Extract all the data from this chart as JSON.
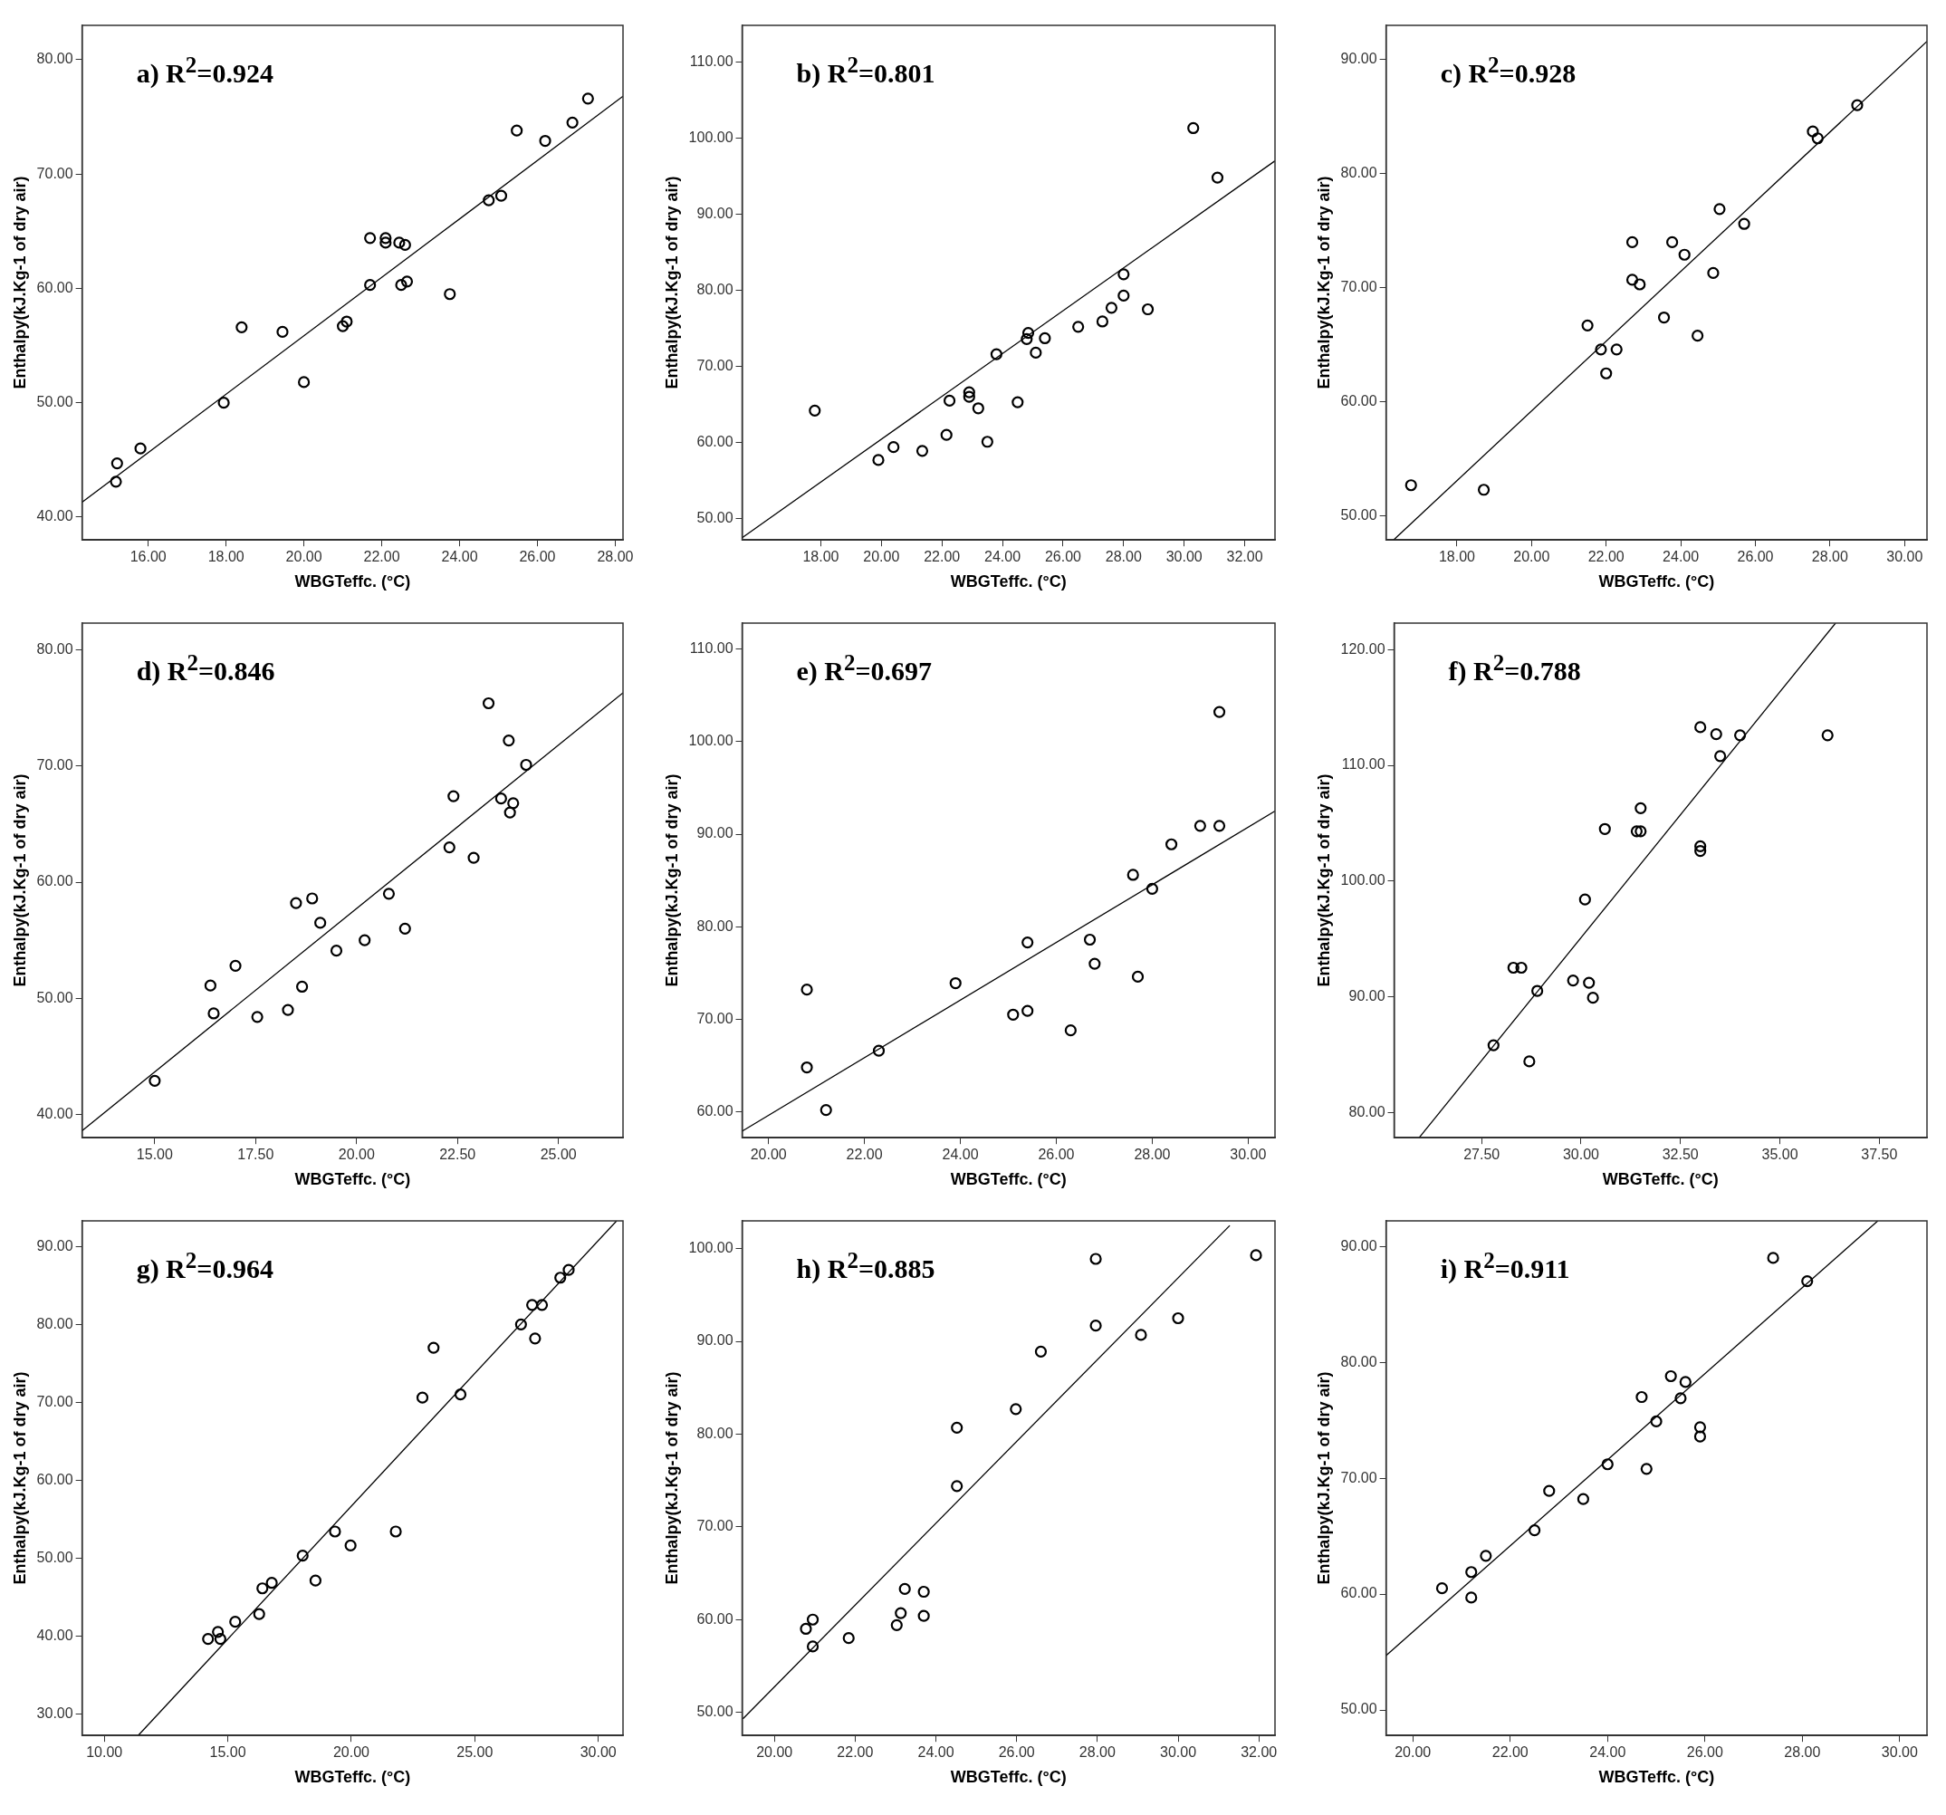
{
  "chart_data": [
    {
      "type": "scatter",
      "xlabel": "WBGTeffc. (°C)",
      "ylabel": "Enthalpy(kJ.Kg-1 of dry air)",
      "annotations": [
        "a)  R$^{2}$=0.924"
      ],
      "marker": "circle",
      "grid": false,
      "legend": false,
      "xlim": [
        14.3,
        28.2
      ],
      "xticks": [
        {
          "value": 16,
          "label": "16.00"
        },
        {
          "value": 18,
          "label": "18.00"
        },
        {
          "value": 20,
          "label": "20.00"
        },
        {
          "value": 22,
          "label": "22.00"
        },
        {
          "value": 24,
          "label": "24.00"
        },
        {
          "value": 26,
          "label": "26.00"
        },
        {
          "value": 28,
          "label": "28.00"
        }
      ],
      "ylim": [
        38,
        83
      ],
      "yticks": [
        {
          "value": 40,
          "label": "40.00"
        },
        {
          "value": 50,
          "label": "50.00"
        },
        {
          "value": 60,
          "label": "60.00"
        },
        {
          "value": 70,
          "label": "70.00"
        },
        {
          "value": 80,
          "label": "80.00"
        }
      ],
      "series": [
        {
          "type": "scatter",
          "color": "#000000",
          "x": [
            15.2,
            15.17,
            15.8,
            17.94,
            18.4,
            19.45,
            20.0,
            21.7,
            21.7,
            21.0,
            21.1,
            22.1,
            22.1,
            22.45,
            22.6,
            22.5,
            22.65,
            23.75,
            24.75,
            25.07,
            25.47,
            26.2,
            26.9,
            27.3
          ],
          "values": [
            44.7,
            43.1,
            46.0,
            50.0,
            56.6,
            56.2,
            51.8,
            60.3,
            64.4,
            56.7,
            57.1,
            64.4,
            64.0,
            64.0,
            63.8,
            60.3,
            60.6,
            59.5,
            67.7,
            68.1,
            73.8,
            72.9,
            74.5,
            76.6
          ]
        },
        {
          "type": "line",
          "marker": "none",
          "color": "#000000",
          "x": [
            14.3,
            28.2
          ],
          "values": [
            41.3,
            76.8
          ]
        }
      ]
    },
    {
      "type": "scatter",
      "xlabel": "WBGTeffc. (°C)",
      "ylabel": "Enthalpy(kJ.Kg-1 of dry air)",
      "annotations": [
        "b) R$^{2}$=0.801"
      ],
      "marker": "circle",
      "grid": false,
      "legend": false,
      "xlim": [
        15.4,
        33.0
      ],
      "xticks": [
        {
          "value": 18,
          "label": "18.00"
        },
        {
          "value": 20,
          "label": "20.00"
        },
        {
          "value": 22,
          "label": "22.00"
        },
        {
          "value": 24,
          "label": "24.00"
        },
        {
          "value": 26,
          "label": "26.00"
        },
        {
          "value": 28,
          "label": "28.00"
        },
        {
          "value": 30,
          "label": "30.00"
        },
        {
          "value": 32,
          "label": "32.00"
        }
      ],
      "ylim": [
        47.2,
        114.8
      ],
      "yticks": [
        {
          "value": 50,
          "label": "50.00"
        },
        {
          "value": 60,
          "label": "60.00"
        },
        {
          "value": 70,
          "label": "70.00"
        },
        {
          "value": 80,
          "label": "80.00"
        },
        {
          "value": 90,
          "label": "90.00"
        },
        {
          "value": 100,
          "label": "100.00"
        },
        {
          "value": 110,
          "label": "110.00"
        }
      ],
      "series": [
        {
          "type": "scatter",
          "color": "#000000",
          "x": [
            17.8,
            19.9,
            20.4,
            21.35,
            22.15,
            22.25,
            22.9,
            22.9,
            23.2,
            23.5,
            23.8,
            24.5,
            24.8,
            24.85,
            25.1,
            25.4,
            26.5,
            27.3,
            27.6,
            28.0,
            28.0,
            28.8,
            30.3,
            31.1
          ],
          "values": [
            64.2,
            57.7,
            59.4,
            58.9,
            61.0,
            65.5,
            66.6,
            66.0,
            64.5,
            60.1,
            71.6,
            65.3,
            73.6,
            74.4,
            71.8,
            73.7,
            75.2,
            75.9,
            77.7,
            79.3,
            82.1,
            77.5,
            101.3,
            94.8
          ]
        },
        {
          "type": "line",
          "marker": "none",
          "color": "#000000",
          "x": [
            15.4,
            33.0
          ],
          "values": [
            47.5,
            97.0
          ]
        }
      ]
    },
    {
      "type": "scatter",
      "xlabel": "WBGTeffc. (°C)",
      "ylabel": "Enthalpy(kJ.Kg-1 of dry air)",
      "annotations": [
        "c) R$^{2}$=0.928"
      ],
      "marker": "circle",
      "grid": false,
      "legend": false,
      "xlim": [
        16.1,
        30.6
      ],
      "xticks": [
        {
          "value": 18,
          "label": "18.00"
        },
        {
          "value": 20,
          "label": "20.00"
        },
        {
          "value": 22,
          "label": "22.00"
        },
        {
          "value": 24,
          "label": "24.00"
        },
        {
          "value": 26,
          "label": "26.00"
        },
        {
          "value": 28,
          "label": "28.00"
        },
        {
          "value": 30,
          "label": "30.00"
        }
      ],
      "ylim": [
        47.9,
        93.0
      ],
      "yticks": [
        {
          "value": 50,
          "label": "50.00"
        },
        {
          "value": 60,
          "label": "60.00"
        },
        {
          "value": 70,
          "label": "70.00"
        },
        {
          "value": 80,
          "label": "80.00"
        },
        {
          "value": 90,
          "label": "90.00"
        }
      ],
      "series": [
        {
          "type": "scatter",
          "color": "#000000",
          "x": [
            16.77,
            18.72,
            21.5,
            21.86,
            22.28,
            22.0,
            22.7,
            22.7,
            22.9,
            23.55,
            23.77,
            24.1,
            24.45,
            24.87,
            25.04,
            25.7,
            27.54,
            27.67,
            28.73
          ],
          "values": [
            52.7,
            52.3,
            66.7,
            64.6,
            64.6,
            62.5,
            74.0,
            70.7,
            70.3,
            67.4,
            74.0,
            72.9,
            65.8,
            71.3,
            76.9,
            75.6,
            83.7,
            83.1,
            86.0
          ]
        },
        {
          "type": "line",
          "marker": "none",
          "color": "#000000",
          "x": [
            16.3,
            30.6
          ],
          "values": [
            47.9,
            91.6
          ]
        }
      ]
    },
    {
      "type": "scatter",
      "xlabel": "WBGTeffc. (°C)",
      "ylabel": "Enthalpy(kJ.Kg-1 of dry air)",
      "annotations": [
        "d) R$^{2}$=0.846"
      ],
      "marker": "circle",
      "grid": false,
      "legend": false,
      "xlim": [
        13.2,
        26.6
      ],
      "xticks": [
        {
          "value": 15,
          "label": "15.00"
        },
        {
          "value": 17.5,
          "label": "17.50"
        },
        {
          "value": 20,
          "label": "20.00"
        },
        {
          "value": 22.5,
          "label": "22.50"
        },
        {
          "value": 25,
          "label": "25.00"
        }
      ],
      "ylim": [
        38,
        82.3
      ],
      "yticks": [
        {
          "value": 40,
          "label": "40.00"
        },
        {
          "value": 50,
          "label": "50.00"
        },
        {
          "value": 60,
          "label": "60.00"
        },
        {
          "value": 70,
          "label": "70.00"
        },
        {
          "value": 80,
          "label": "80.00"
        }
      ],
      "series": [
        {
          "type": "scatter",
          "color": "#000000",
          "x": [
            15.0,
            16.38,
            16.46,
            17.0,
            17.54,
            18.3,
            18.5,
            18.65,
            18.9,
            19.1,
            19.5,
            20.2,
            20.8,
            21.2,
            22.3,
            22.4,
            22.9,
            23.27,
            23.58,
            23.77,
            23.8,
            23.88,
            24.2
          ],
          "values": [
            42.9,
            51.1,
            48.7,
            52.8,
            48.4,
            49.0,
            58.2,
            51.0,
            58.6,
            56.5,
            54.1,
            55.0,
            59.0,
            56.0,
            63.0,
            67.4,
            62.1,
            75.4,
            67.2,
            72.2,
            66.0,
            66.8,
            70.1
          ]
        },
        {
          "type": "line",
          "marker": "none",
          "color": "#000000",
          "x": [
            13.2,
            26.6
          ],
          "values": [
            38.6,
            76.3
          ]
        }
      ]
    },
    {
      "type": "scatter",
      "xlabel": "WBGTeffc. (°C)",
      "ylabel": "Enthalpy(kJ.Kg-1 of dry air)",
      "annotations": [
        "e) R$^{2}$=0.697"
      ],
      "marker": "circle",
      "grid": false,
      "legend": false,
      "xlim": [
        19.45,
        30.56
      ],
      "xticks": [
        {
          "value": 20,
          "label": "20.00"
        },
        {
          "value": 22,
          "label": "22.00"
        },
        {
          "value": 24,
          "label": "24.00"
        },
        {
          "value": 26,
          "label": "26.00"
        },
        {
          "value": 28,
          "label": "28.00"
        },
        {
          "value": 30,
          "label": "30.00"
        }
      ],
      "ylim": [
        57.2,
        112.8
      ],
      "yticks": [
        {
          "value": 60,
          "label": "60.00"
        },
        {
          "value": 70,
          "label": "70.00"
        },
        {
          "value": 80,
          "label": "80.00"
        },
        {
          "value": 90,
          "label": "90.00"
        },
        {
          "value": 100,
          "label": "100.00"
        },
        {
          "value": 110,
          "label": "110.00"
        }
      ],
      "series": [
        {
          "type": "scatter",
          "color": "#000000",
          "x": [
            20.8,
            20.8,
            21.2,
            22.3,
            23.9,
            25.1,
            25.4,
            25.4,
            26.3,
            26.7,
            26.8,
            27.6,
            27.7,
            28.0,
            28.4,
            29.0,
            29.4,
            29.4
          ],
          "values": [
            73.2,
            64.8,
            60.2,
            66.6,
            73.9,
            70.5,
            70.9,
            78.3,
            68.8,
            78.6,
            76.0,
            85.6,
            74.6,
            84.1,
            88.9,
            90.9,
            90.9,
            103.2
          ]
        },
        {
          "type": "line",
          "marker": "none",
          "color": "#000000",
          "x": [
            19.45,
            30.56
          ],
          "values": [
            57.9,
            92.5
          ]
        }
      ]
    },
    {
      "type": "scatter",
      "xlabel": "WBGTeffc. (°C)",
      "ylabel": "Enthalpy(kJ.Kg-1 of dry air)",
      "annotations": [
        "f) R$^{2}$=0.788"
      ],
      "marker": "circle",
      "grid": false,
      "legend": false,
      "xlim": [
        25.3,
        38.7
      ],
      "xticks": [
        {
          "value": 27.5,
          "label": "27.50"
        },
        {
          "value": 30,
          "label": "30.00"
        },
        {
          "value": 32.5,
          "label": "32.50"
        },
        {
          "value": 35,
          "label": "35.00"
        },
        {
          "value": 37.5,
          "label": "37.50"
        }
      ],
      "ylim": [
        77.8,
        122.3
      ],
      "yticks": [
        {
          "value": 80,
          "label": "80.00"
        },
        {
          "value": 90,
          "label": "90.00"
        },
        {
          "value": 100,
          "label": "100.00"
        },
        {
          "value": 110,
          "label": "110.00"
        },
        {
          "value": 120,
          "label": "120.00"
        }
      ],
      "series": [
        {
          "type": "scatter",
          "color": "#000000",
          "x": [
            27.8,
            28.7,
            28.3,
            28.5,
            28.9,
            29.8,
            30.2,
            30.3,
            30.1,
            30.6,
            31.4,
            31.5,
            31.5,
            33.0,
            33.0,
            33.0,
            33.4,
            34.0,
            33.5,
            36.2
          ],
          "values": [
            85.8,
            84.4,
            92.5,
            92.5,
            90.5,
            91.4,
            91.2,
            89.9,
            98.4,
            104.5,
            104.3,
            104.3,
            106.3,
            103.0,
            102.6,
            113.3,
            112.7,
            112.6,
            110.8,
            112.6
          ]
        },
        {
          "type": "line",
          "marker": "none",
          "color": "#000000",
          "x": [
            25.93,
            36.4
          ],
          "values": [
            77.8,
            122.3
          ]
        }
      ]
    },
    {
      "type": "scatter",
      "xlabel": "WBGTeffc. (°C)",
      "ylabel": "Enthalpy(kJ.Kg-1 of dry air)",
      "annotations": [
        "g) R$^{2}$=0.964"
      ],
      "marker": "circle",
      "grid": false,
      "legend": false,
      "xlim": [
        9.1,
        31.0
      ],
      "xticks": [
        {
          "value": 10,
          "label": "10.00"
        },
        {
          "value": 15,
          "label": "15.00"
        },
        {
          "value": 20,
          "label": "20.00"
        },
        {
          "value": 25,
          "label": "25.00"
        },
        {
          "value": 30,
          "label": "30.00"
        }
      ],
      "ylim": [
        27.2,
        93.3
      ],
      "yticks": [
        {
          "value": 30,
          "label": "30.00"
        },
        {
          "value": 40,
          "label": "40.00"
        },
        {
          "value": 50,
          "label": "50.00"
        },
        {
          "value": 60,
          "label": "60.00"
        },
        {
          "value": 70,
          "label": "70.00"
        },
        {
          "value": 80,
          "label": "80.00"
        },
        {
          "value": 90,
          "label": "90.00"
        }
      ],
      "series": [
        {
          "type": "scatter",
          "color": "#000000",
          "x": [
            14.2,
            14.6,
            14.7,
            15.3,
            16.27,
            16.4,
            16.78,
            18.03,
            18.55,
            19.34,
            19.97,
            21.8,
            22.88,
            23.33,
            24.42,
            26.87,
            27.32,
            27.44,
            27.72,
            28.46,
            28.8
          ],
          "values": [
            39.6,
            40.5,
            39.6,
            41.8,
            42.8,
            46.1,
            46.8,
            50.3,
            47.1,
            53.4,
            51.6,
            53.4,
            70.6,
            77.0,
            71.0,
            80.0,
            82.5,
            78.2,
            82.5,
            86.0,
            87.0
          ]
        },
        {
          "type": "line",
          "marker": "none",
          "color": "#000000",
          "x": [
            11.37,
            30.74
          ],
          "values": [
            27.2,
            93.3
          ]
        }
      ]
    },
    {
      "type": "scatter",
      "xlabel": "WBGTeffc. (°C)",
      "ylabel": "Enthalpy(kJ.Kg-1 of dry air)",
      "annotations": [
        "h) R$^{2}$=0.885"
      ],
      "marker": "circle",
      "grid": false,
      "legend": false,
      "xlim": [
        19.2,
        32.4
      ],
      "xticks": [
        {
          "value": 20,
          "label": "20.00"
        },
        {
          "value": 22,
          "label": "22.00"
        },
        {
          "value": 24,
          "label": "24.00"
        },
        {
          "value": 26,
          "label": "26.00"
        },
        {
          "value": 28,
          "label": "28.00"
        },
        {
          "value": 30,
          "label": "30.00"
        },
        {
          "value": 32,
          "label": "32.00"
        }
      ],
      "ylim": [
        47.5,
        103.0
      ],
      "yticks": [
        {
          "value": 50,
          "label": "50.00"
        },
        {
          "value": 60,
          "label": "60.00"
        },
        {
          "value": 70,
          "label": "70.00"
        },
        {
          "value": 80,
          "label": "80.00"
        },
        {
          "value": 90,
          "label": "90.00"
        },
        {
          "value": 100,
          "label": "100.00"
        }
      ],
      "series": [
        {
          "type": "scatter",
          "color": "#000000",
          "x": [
            20.78,
            20.95,
            20.95,
            21.84,
            23.03,
            23.13,
            23.23,
            23.7,
            23.7,
            24.52,
            24.52,
            25.98,
            26.6,
            27.96,
            27.96,
            29.08,
            30.0,
            31.93
          ],
          "values": [
            59.0,
            60.0,
            57.1,
            58.0,
            59.4,
            60.7,
            63.3,
            63.0,
            60.4,
            74.4,
            80.7,
            82.7,
            88.9,
            91.7,
            98.9,
            90.7,
            92.5,
            99.3
          ]
        },
        {
          "type": "line",
          "marker": "none",
          "color": "#000000",
          "x": [
            19.22,
            31.28
          ],
          "values": [
            49.3,
            102.5
          ]
        }
      ]
    },
    {
      "type": "scatter",
      "xlabel": "WBGTeffc. (°C)",
      "ylabel": "Enthalpy(kJ.Kg-1 of dry air)",
      "annotations": [
        "i) R$^{2}$=0.911"
      ],
      "marker": "circle",
      "grid": false,
      "legend": false,
      "xlim": [
        19.45,
        30.56
      ],
      "xticks": [
        {
          "value": 20,
          "label": "20.00"
        },
        {
          "value": 22,
          "label": "22.00"
        },
        {
          "value": 24,
          "label": "24.00"
        },
        {
          "value": 26,
          "label": "26.00"
        },
        {
          "value": 28,
          "label": "28.00"
        },
        {
          "value": 30,
          "label": "30.00"
        }
      ],
      "ylim": [
        47.8,
        92.2
      ],
      "yticks": [
        {
          "value": 50,
          "label": "50.00"
        },
        {
          "value": 60,
          "label": "60.00"
        },
        {
          "value": 70,
          "label": "70.00"
        },
        {
          "value": 80,
          "label": "80.00"
        },
        {
          "value": 90,
          "label": "90.00"
        }
      ],
      "series": [
        {
          "type": "scatter",
          "color": "#000000",
          "x": [
            27.4,
            28.1,
            25.3,
            25.6,
            24.7,
            25.5,
            25.0,
            25.9,
            25.9,
            24.0,
            24.8,
            22.8,
            23.5,
            22.5,
            21.5,
            21.2,
            20.6,
            21.2
          ],
          "values": [
            89.0,
            87.0,
            78.8,
            78.3,
            77.0,
            76.9,
            74.9,
            74.4,
            73.6,
            71.2,
            70.8,
            68.9,
            68.2,
            65.5,
            63.3,
            61.9,
            60.5,
            59.7
          ]
        },
        {
          "type": "line",
          "marker": "none",
          "color": "#000000",
          "x": [
            19.45,
            29.55
          ],
          "values": [
            54.7,
            92.2
          ]
        }
      ]
    }
  ]
}
